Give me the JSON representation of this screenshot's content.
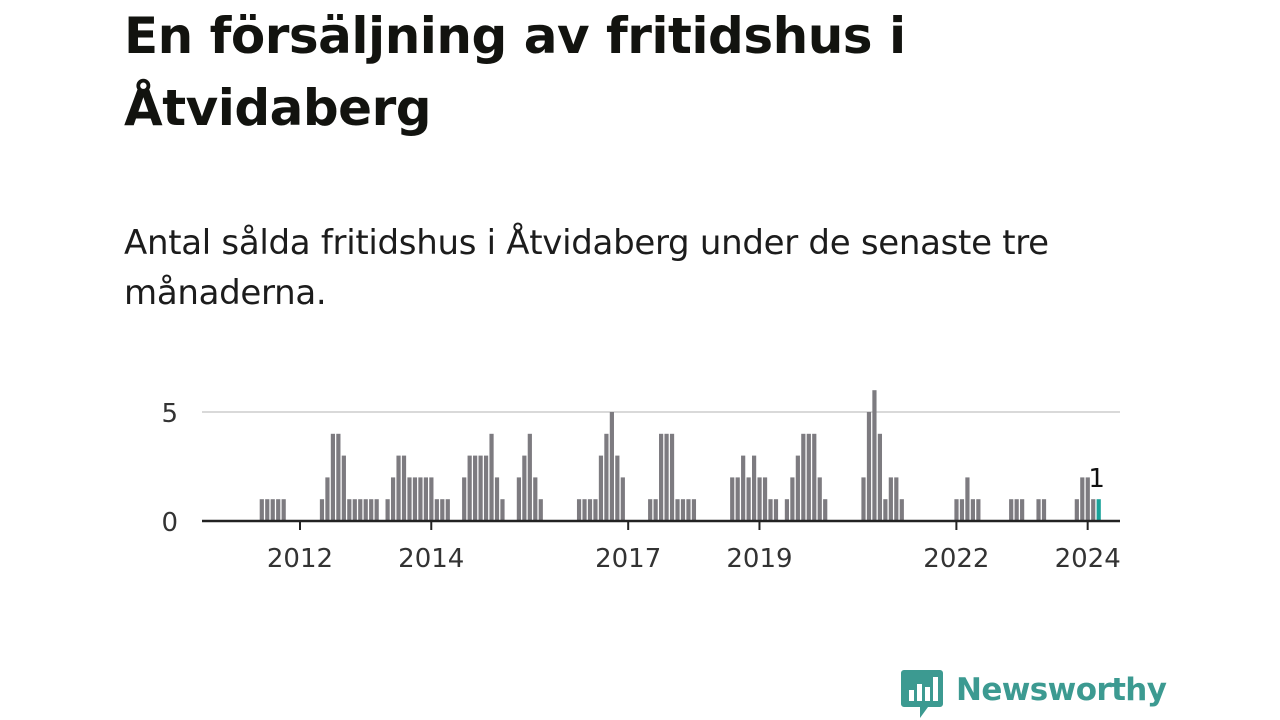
{
  "title": "En försäljning av fritidshus i Åtvidaberg",
  "subtitle": "Antal sålda fritidshus i Åtvidaberg under de senaste tre månaderna.",
  "brand": {
    "name": "Newsworthy",
    "icon": "newsworthy-logo-icon",
    "color": "#3c9a91"
  },
  "colors": {
    "bar": "#7d7b80",
    "highlight": "#1aa39a",
    "grid": "#d9d9d9",
    "axis": "#222222",
    "text": "#333333"
  },
  "chart_data": {
    "type": "bar",
    "title": "En försäljning av fritidshus i Åtvidaberg",
    "subtitle": "Antal sålda fritidshus i Åtvidaberg under de senaste tre månaderna.",
    "xlabel": "",
    "ylabel": "",
    "x_start": "2011-01",
    "x_end": "2024-08",
    "ylim": [
      0,
      6
    ],
    "y_ticks": [
      0,
      5
    ],
    "x_tick_labels": [
      "2012",
      "2014",
      "2017",
      "2019",
      "2022",
      "2024"
    ],
    "grid": "horizontal",
    "months": [
      "2011-01",
      "2011-02",
      "2011-03",
      "2011-04",
      "2011-05",
      "2011-06",
      "2011-07",
      "2011-08",
      "2011-09",
      "2011-10",
      "2011-11",
      "2011-12",
      "2012-01",
      "2012-02",
      "2012-03",
      "2012-04",
      "2012-05",
      "2012-06",
      "2012-07",
      "2012-08",
      "2012-09",
      "2012-10",
      "2012-11",
      "2012-12",
      "2013-01",
      "2013-02",
      "2013-03",
      "2013-04",
      "2013-05",
      "2013-06",
      "2013-07",
      "2013-08",
      "2013-09",
      "2013-10",
      "2013-11",
      "2013-12",
      "2014-01",
      "2014-02",
      "2014-03",
      "2014-04",
      "2014-05",
      "2014-06",
      "2014-07",
      "2014-08",
      "2014-09",
      "2014-10",
      "2014-11",
      "2014-12",
      "2015-01",
      "2015-02",
      "2015-03",
      "2015-04",
      "2015-05",
      "2015-06",
      "2015-07",
      "2015-08",
      "2015-09",
      "2015-10",
      "2015-11",
      "2015-12",
      "2016-01",
      "2016-02",
      "2016-03",
      "2016-04",
      "2016-05",
      "2016-06",
      "2016-07",
      "2016-08",
      "2016-09",
      "2016-10",
      "2016-11",
      "2016-12",
      "2017-01",
      "2017-02",
      "2017-03",
      "2017-04",
      "2017-05",
      "2017-06",
      "2017-07",
      "2017-08",
      "2017-09",
      "2017-10",
      "2017-11",
      "2017-12",
      "2018-01",
      "2018-02",
      "2018-03",
      "2018-04",
      "2018-05",
      "2018-06",
      "2018-07",
      "2018-08",
      "2018-09",
      "2018-10",
      "2018-11",
      "2018-12",
      "2019-01",
      "2019-02",
      "2019-03",
      "2019-04",
      "2019-05",
      "2019-06",
      "2019-07",
      "2019-08",
      "2019-09",
      "2019-10",
      "2019-11",
      "2019-12",
      "2020-01",
      "2020-02",
      "2020-03",
      "2020-04",
      "2020-05",
      "2020-06",
      "2020-07",
      "2020-08",
      "2020-09",
      "2020-10",
      "2020-11",
      "2020-12",
      "2021-01",
      "2021-02",
      "2021-03",
      "2021-04",
      "2021-05",
      "2021-06",
      "2021-07",
      "2021-08",
      "2021-09",
      "2021-10",
      "2021-11",
      "2021-12",
      "2022-01",
      "2022-02",
      "2022-03",
      "2022-04",
      "2022-05",
      "2022-06",
      "2022-07",
      "2022-08",
      "2022-09",
      "2022-10",
      "2022-11",
      "2022-12",
      "2023-01",
      "2023-02",
      "2023-03",
      "2023-04",
      "2023-05",
      "2023-06",
      "2023-07",
      "2023-08",
      "2023-09",
      "2023-10",
      "2023-11",
      "2023-12",
      "2024-01",
      "2024-02",
      "2024-03",
      "2024-04",
      "2024-05",
      "2024-06",
      "2024-07",
      "2024-08"
    ],
    "values": [
      0,
      0,
      0,
      0,
      0,
      0,
      0,
      0,
      0,
      0,
      1,
      1,
      1,
      1,
      1,
      0,
      0,
      0,
      0,
      0,
      0,
      1,
      2,
      4,
      4,
      3,
      1,
      1,
      1,
      1,
      1,
      1,
      0,
      1,
      2,
      3,
      3,
      2,
      2,
      2,
      2,
      2,
      1,
      1,
      1,
      0,
      0,
      2,
      3,
      3,
      3,
      3,
      4,
      2,
      1,
      0,
      0,
      2,
      3,
      4,
      2,
      1,
      0,
      0,
      0,
      0,
      0,
      0,
      1,
      1,
      1,
      1,
      3,
      4,
      5,
      3,
      2,
      0,
      0,
      0,
      0,
      1,
      1,
      4,
      4,
      4,
      1,
      1,
      1,
      1,
      0,
      0,
      0,
      0,
      0,
      0,
      2,
      2,
      3,
      2,
      3,
      2,
      2,
      1,
      1,
      0,
      1,
      2,
      3,
      4,
      4,
      4,
      2,
      1,
      0,
      0,
      0,
      0,
      0,
      0,
      2,
      5,
      6,
      4,
      1,
      2,
      2,
      1,
      0,
      0,
      0,
      0,
      0,
      0,
      0,
      0,
      0,
      1,
      1,
      2,
      1,
      1,
      0,
      0,
      0,
      0,
      0,
      1,
      1,
      1,
      0,
      0,
      1,
      1,
      0,
      0,
      0,
      0,
      0,
      1,
      2,
      2,
      1,
      1
    ],
    "highlight_index": 163,
    "highlight_label": "1"
  }
}
